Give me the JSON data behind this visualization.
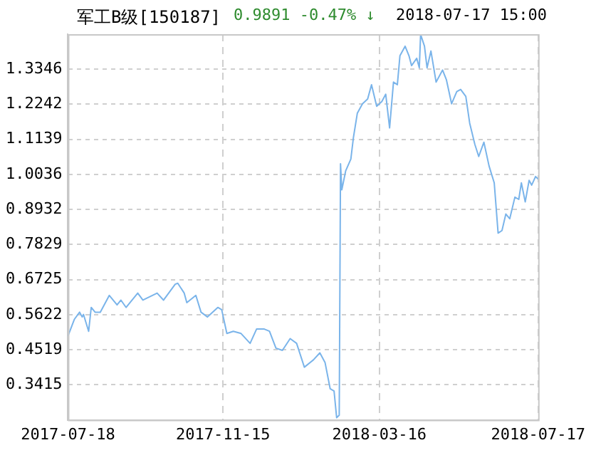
{
  "chart_data": {
    "type": "line",
    "title": "军工B级[150187]",
    "subtitle": "0.9891  -0.47% ↓",
    "annotations": [
      "2018-07-17 15:00"
    ],
    "x": [
      "2017-07-18",
      "2017-07-23",
      "2017-07-27",
      "2017-07-29",
      "2017-07-30",
      "2017-08-03",
      "2017-08-05",
      "2017-08-08",
      "2017-08-12",
      "2017-08-19",
      "2017-08-25",
      "2017-08-28",
      "2017-09-01",
      "2017-09-10",
      "2017-09-14",
      "2017-09-25",
      "2017-09-30",
      "2017-10-09",
      "2017-10-11",
      "2017-10-16",
      "2017-10-18",
      "2017-10-25",
      "2017-10-29",
      "2017-11-03",
      "2017-11-11",
      "2017-11-14",
      "2017-11-18",
      "2017-11-23",
      "2017-11-29",
      "2017-12-06",
      "2017-12-11",
      "2017-12-17",
      "2017-12-21",
      "2017-12-26",
      "2017-12-31",
      "2018-01-06",
      "2018-01-11",
      "2018-01-17",
      "2018-01-24",
      "2018-01-29",
      "2018-02-02",
      "2018-02-06",
      "2018-02-09",
      "2018-02-11",
      "2018-02-13",
      "2018-02-14",
      "2018-02-15",
      "2018-02-18",
      "2018-02-22",
      "2018-02-24",
      "2018-02-27",
      "2018-03-03",
      "2018-03-07",
      "2018-03-10",
      "2018-03-14",
      "2018-03-18",
      "2018-03-21",
      "2018-03-24",
      "2018-03-27",
      "2018-03-30",
      "2018-04-01",
      "2018-04-05",
      "2018-04-08",
      "2018-04-10",
      "2018-04-14",
      "2018-04-16",
      "2018-04-17",
      "2018-04-20",
      "2018-04-22",
      "2018-04-25",
      "2018-04-29",
      "2018-05-04",
      "2018-05-07",
      "2018-05-11",
      "2018-05-15",
      "2018-05-18",
      "2018-05-22",
      "2018-05-25",
      "2018-05-29",
      "2018-06-01",
      "2018-06-05",
      "2018-06-09",
      "2018-06-13",
      "2018-06-16",
      "2018-06-19",
      "2018-06-22",
      "2018-06-25",
      "2018-06-29",
      "2018-07-02",
      "2018-07-04",
      "2018-07-07",
      "2018-07-10",
      "2018-07-12",
      "2018-07-15",
      "2018-07-17"
    ],
    "series": [
      {
        "color": "#7ab4ea",
        "values": [
          0.495,
          0.548,
          0.57,
          0.555,
          0.563,
          0.51,
          0.585,
          0.57,
          0.57,
          0.623,
          0.593,
          0.608,
          0.585,
          0.63,
          0.608,
          0.63,
          0.608,
          0.658,
          0.661,
          0.63,
          0.6,
          0.623,
          0.57,
          0.555,
          0.585,
          0.578,
          0.503,
          0.51,
          0.503,
          0.472,
          0.517,
          0.517,
          0.51,
          0.457,
          0.45,
          0.487,
          0.472,
          0.397,
          0.42,
          0.442,
          0.412,
          0.329,
          0.322,
          0.238,
          0.246,
          1.037,
          0.955,
          1.015,
          1.052,
          1.12,
          1.196,
          1.226,
          1.241,
          1.286,
          1.218,
          1.233,
          1.256,
          1.15,
          1.294,
          1.286,
          1.377,
          1.407,
          1.377,
          1.346,
          1.369,
          1.339,
          1.444,
          1.407,
          1.339,
          1.392,
          1.294,
          1.332,
          1.301,
          1.226,
          1.264,
          1.271,
          1.249,
          1.165,
          1.098,
          1.06,
          1.105,
          1.03,
          0.977,
          0.819,
          0.827,
          0.879,
          0.864,
          0.932,
          0.925,
          0.977,
          0.917,
          0.985,
          0.97,
          0.997,
          0.989
        ]
      }
    ],
    "xlim": [
      "2017-07-18",
      "2018-07-17"
    ],
    "xticks": [
      "2017-07-18",
      "2017-11-15",
      "2018-03-16",
      "2018-07-17"
    ],
    "ylim": [
      0.2312,
      1.4449
    ],
    "yticks": [
      0.3415,
      0.4519,
      0.5622,
      0.6725,
      0.7829,
      0.8932,
      1.0036,
      1.1139,
      1.2242,
      1.3346
    ],
    "grid": true,
    "marker": "none",
    "line_style": "solid"
  }
}
